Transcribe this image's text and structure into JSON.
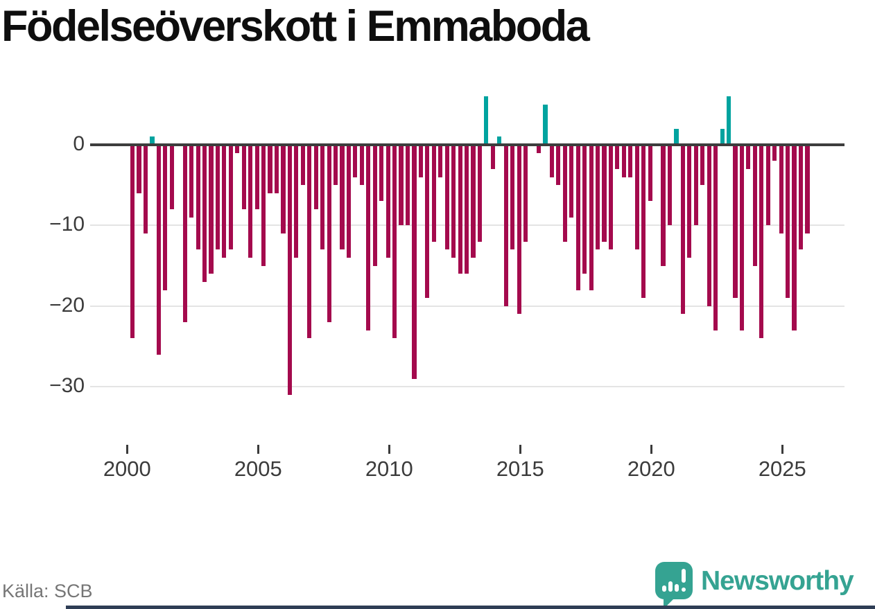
{
  "header": {
    "title": "Födelseöverskott i Emmaboda"
  },
  "footer": {
    "source": "Källa: SCB",
    "brand": "Newsworthy"
  },
  "colors": {
    "negative_bar": "#a40a4d",
    "positive_bar": "#00a39f",
    "axis_line": "#3d3d3d",
    "gridline": "#e4e4e4",
    "tick_label": "#3b3b3b",
    "brand_teal": "#35a392",
    "footer_bar_navy": "#2e3d55",
    "source_gray": "#767676"
  },
  "chart_data": {
    "type": "bar",
    "title": "Födelseöverskott i Emmaboda",
    "source": "Källa: SCB",
    "frequency": "quarterly",
    "x_tick_labels": [
      "2000",
      "2005",
      "2010",
      "2015",
      "2020",
      "2025"
    ],
    "y_tick_labels": [
      "0",
      "−10",
      "−20",
      "−30"
    ],
    "y_tick_values": [
      0,
      -10,
      -20,
      -30
    ],
    "ylim": [
      -34,
      7
    ],
    "grid": "horizontal-only",
    "legend": "none",
    "years": [
      {
        "year": 2000,
        "values": [
          -24,
          -6,
          -11,
          1
        ]
      },
      {
        "year": 2001,
        "values": [
          -26,
          -18,
          -8,
          0
        ]
      },
      {
        "year": 2002,
        "values": [
          -22,
          -9,
          -13,
          -17
        ]
      },
      {
        "year": 2003,
        "values": [
          -16,
          -13,
          -14,
          -13
        ]
      },
      {
        "year": 2004,
        "values": [
          -1,
          -8,
          -14,
          -8
        ]
      },
      {
        "year": 2005,
        "values": [
          -15,
          -6,
          -6,
          -11
        ]
      },
      {
        "year": 2006,
        "values": [
          -31,
          -14,
          -5,
          -24
        ]
      },
      {
        "year": 2007,
        "values": [
          -8,
          -13,
          -22,
          -5
        ]
      },
      {
        "year": 2008,
        "values": [
          -13,
          -14,
          -4,
          -5
        ]
      },
      {
        "year": 2009,
        "values": [
          -23,
          -15,
          -7,
          -14
        ]
      },
      {
        "year": 2010,
        "values": [
          -24,
          -10,
          -10,
          -29
        ]
      },
      {
        "year": 2011,
        "values": [
          -4,
          -19,
          -12,
          -4
        ]
      },
      {
        "year": 2012,
        "values": [
          -13,
          -14,
          -16,
          -16
        ]
      },
      {
        "year": 2013,
        "values": [
          -14,
          -12,
          6,
          -3
        ]
      },
      {
        "year": 2014,
        "values": [
          1,
          -20,
          -13,
          -21
        ]
      },
      {
        "year": 2015,
        "values": [
          -12,
          0,
          -1,
          5
        ]
      },
      {
        "year": 2016,
        "values": [
          -4,
          -5,
          -12,
          -9
        ]
      },
      {
        "year": 2017,
        "values": [
          -18,
          -16,
          -18,
          -13
        ]
      },
      {
        "year": 2018,
        "values": [
          -12,
          -13,
          -3,
          -4
        ]
      },
      {
        "year": 2019,
        "values": [
          -4,
          -13,
          -19,
          -7
        ]
      },
      {
        "year": 2020,
        "values": [
          0,
          -15,
          -10,
          2
        ]
      },
      {
        "year": 2021,
        "values": [
          -21,
          -14,
          -10,
          -5
        ]
      },
      {
        "year": 2022,
        "values": [
          -20,
          -23,
          2,
          6
        ]
      },
      {
        "year": 2023,
        "values": [
          -19,
          -23,
          -3,
          -15
        ]
      },
      {
        "year": 2024,
        "values": [
          -24,
          -10,
          -2,
          -11
        ]
      },
      {
        "year": 2025,
        "values": [
          -19,
          -23,
          -13,
          -11
        ]
      }
    ]
  }
}
